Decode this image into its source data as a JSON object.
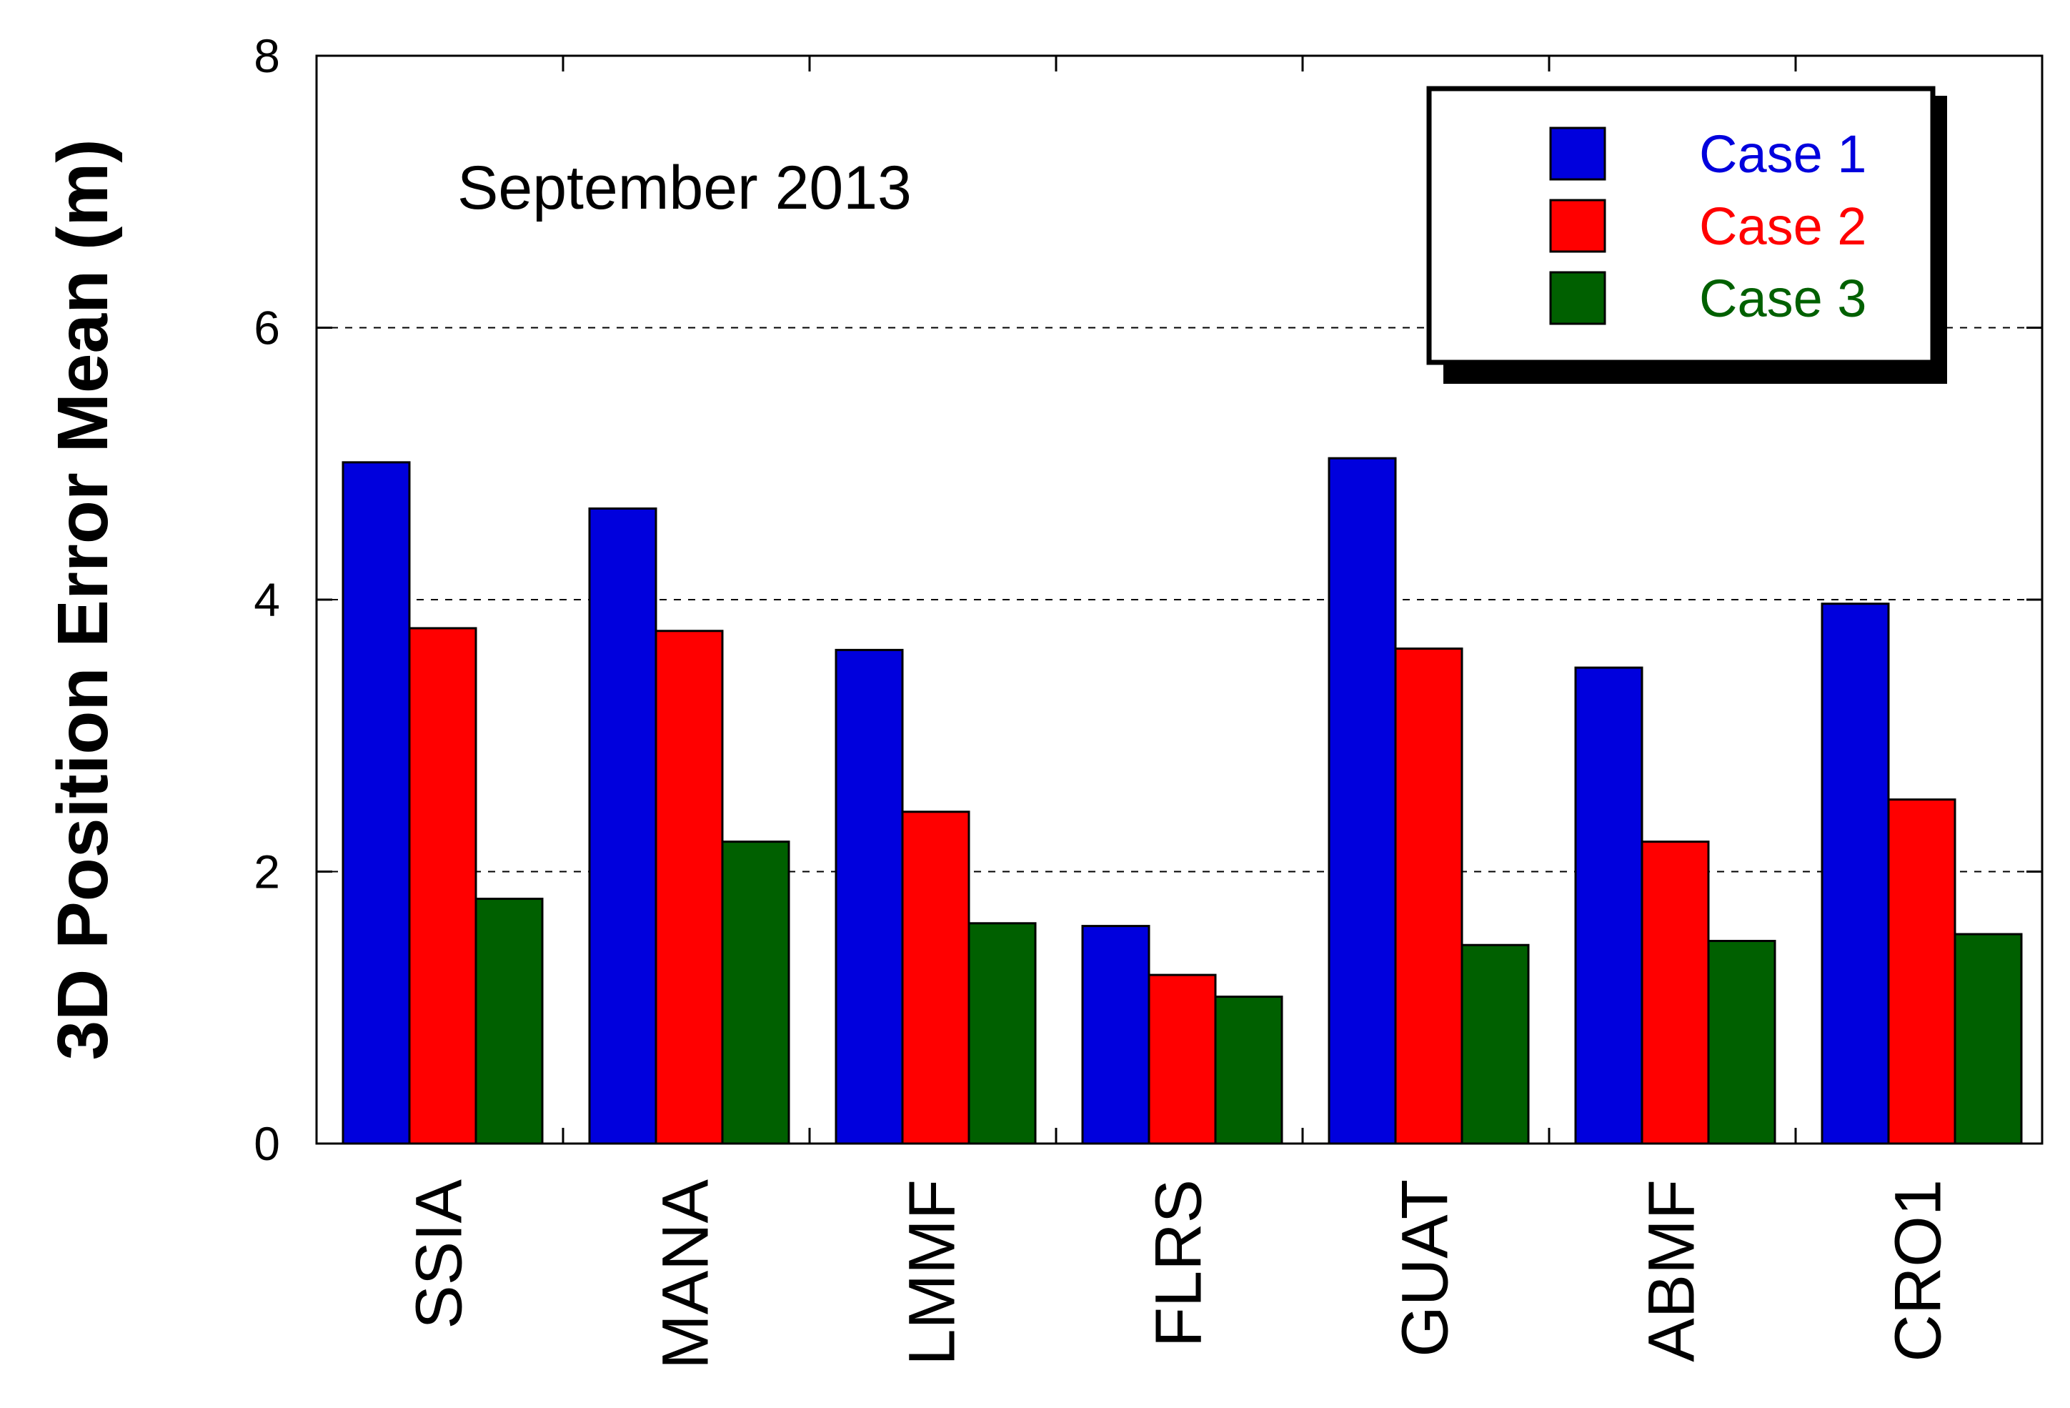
{
  "chart_data": {
    "type": "bar",
    "annotation": "September 2013",
    "ylabel": "3D Position Error Mean (m)",
    "xlabel": "",
    "categories": [
      "SSIA",
      "MANA",
      "LMMF",
      "FLRS",
      "GUAT",
      "ABMF",
      "CRO1"
    ],
    "series": [
      {
        "name": "Case 1",
        "color": "#0000dd",
        "values": [
          5.01,
          4.67,
          3.63,
          1.6,
          5.04,
          3.5,
          3.97
        ]
      },
      {
        "name": "Case 2",
        "color": "#ff0000",
        "values": [
          3.79,
          3.77,
          2.44,
          1.24,
          3.64,
          2.22,
          2.53
        ]
      },
      {
        "name": "Case 3",
        "color": "#006000",
        "values": [
          1.8,
          2.22,
          1.62,
          1.08,
          1.46,
          1.49,
          1.54
        ]
      }
    ],
    "ylim": [
      0,
      8
    ],
    "yticks": [
      0,
      2,
      4,
      6,
      8
    ],
    "ytick_labels": [
      "0",
      "2",
      "4",
      "6",
      "8"
    ],
    "grid": "dashed horizontal at 2, 4, 6",
    "legend_position": "top-right"
  }
}
